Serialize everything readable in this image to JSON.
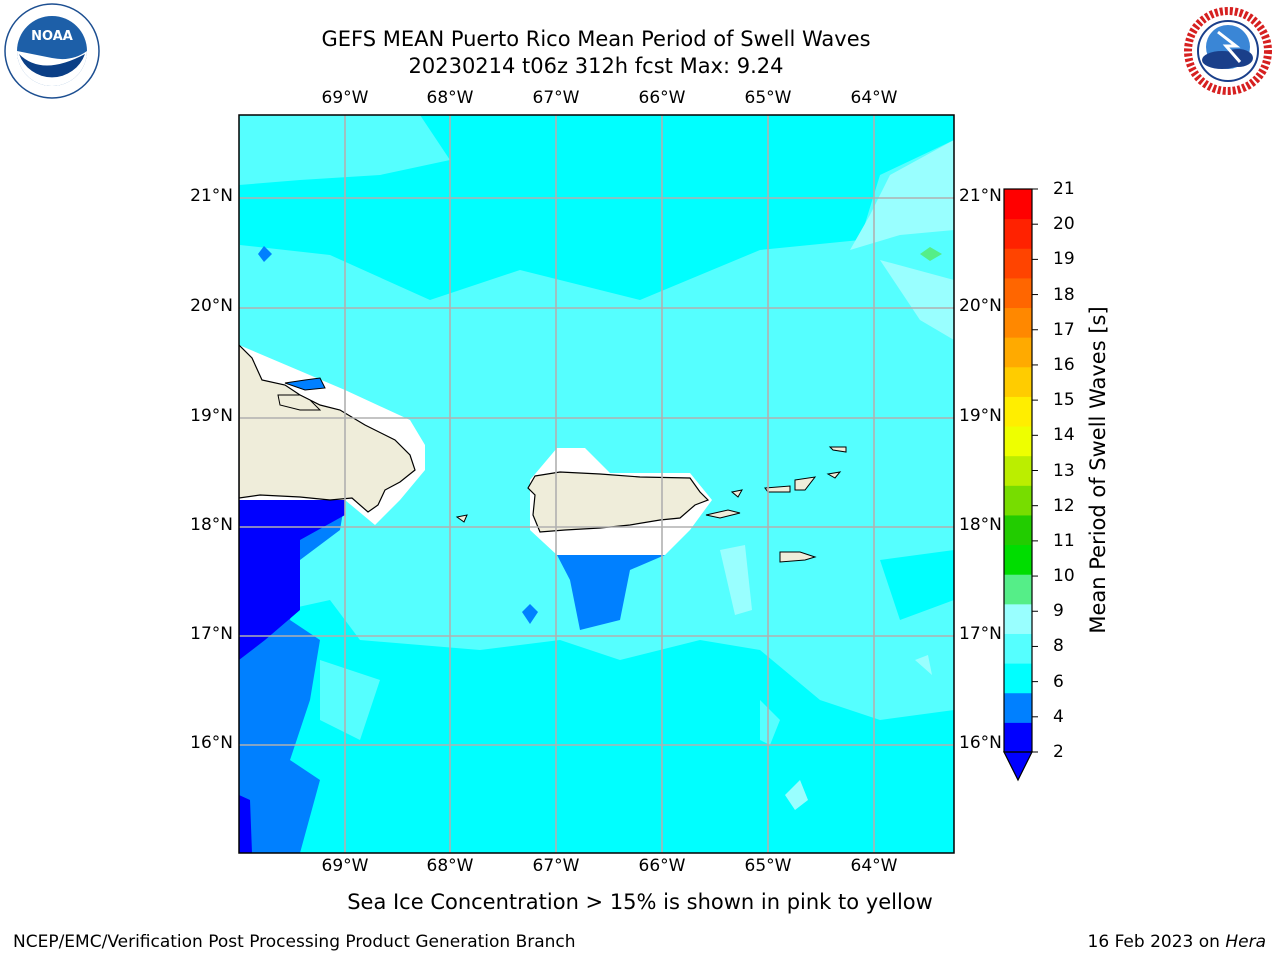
{
  "title": {
    "line1": "GEFS MEAN Puerto Rico Mean Period of Swell Waves",
    "line2": "20230214 t06z 312h fcst   Max: 9.24"
  },
  "map": {
    "lon_labels": [
      "69°W",
      "68°W",
      "67°W",
      "66°W",
      "65°W",
      "64°W"
    ],
    "lat_labels": [
      "21°N",
      "20°N",
      "19°N",
      "18°N",
      "17°N",
      "16°N"
    ],
    "land_color": "#efedda",
    "gridline_color": "#b0b0b0"
  },
  "colorbar": {
    "label": "Mean Period of Swell Waves [s]",
    "ticks": [
      "21",
      "20",
      "19",
      "18",
      "17",
      "16",
      "15",
      "14",
      "13",
      "12",
      "11",
      "10",
      "9",
      "8",
      "6",
      "4",
      "2"
    ],
    "colors": [
      "#0000ff",
      "#0080ff",
      "#00ffff",
      "#55ffff",
      "#99ffff",
      "#55ee88",
      "#00dd00",
      "#22cc00",
      "#77dd00",
      "#bbee00",
      "#eeff00",
      "#ffee00",
      "#ffcc00",
      "#ffaa00",
      "#ff8800",
      "#ff6600",
      "#ff4400",
      "#ff2200",
      "#ff0000"
    ]
  },
  "seaice_note": "Sea Ice Concentration > 15% is shown in pink to yellow",
  "footer": {
    "left": "NCEP/EMC/Verification Post Processing Product Generation Branch",
    "date": "16 Feb 2023 on ",
    "host": "Hera"
  },
  "logos": {
    "left": "NOAA",
    "right": "NATIONAL WEATHER SERVICE"
  }
}
